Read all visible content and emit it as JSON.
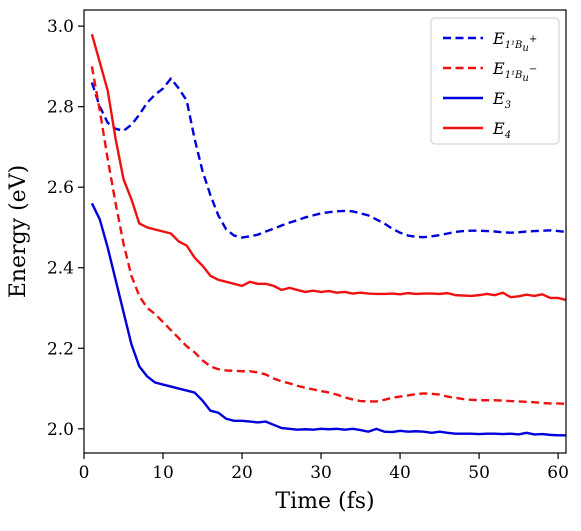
{
  "chart_data": {
    "type": "line",
    "xlabel": "Time (fs)",
    "ylabel": "Energy (eV)",
    "xlim": [
      0,
      61
    ],
    "ylim": [
      1.94,
      3.04
    ],
    "xticks": [
      0,
      10,
      20,
      30,
      40,
      50,
      60
    ],
    "yticks": [
      2.0,
      2.2,
      2.4,
      2.6,
      2.8,
      3.0
    ],
    "xtick_labels": [
      "0",
      "10",
      "20",
      "30",
      "40",
      "50",
      "60"
    ],
    "ytick_labels": [
      "2.0",
      "2.2",
      "2.4",
      "2.6",
      "2.8",
      "3.0"
    ],
    "grid": false,
    "legend_position": "top-right",
    "series": [
      {
        "name": "E_{1^1B_u^+}",
        "legend_main": "E",
        "legend_sub": "1¹B",
        "legend_sub2": "u",
        "legend_sup": "+",
        "color": "#0000dd",
        "dash": "dashed",
        "x": [
          1,
          2,
          3,
          4,
          5,
          6,
          7,
          8,
          9,
          10,
          11,
          12,
          13,
          14,
          15,
          16,
          17,
          18,
          19,
          20,
          21,
          22,
          23,
          24,
          25,
          26,
          27,
          28,
          29,
          30,
          31,
          32,
          33,
          34,
          35,
          36,
          37,
          38,
          39,
          40,
          41,
          42,
          43,
          44,
          45,
          46,
          47,
          48,
          49,
          50,
          51,
          52,
          53,
          54,
          55,
          56,
          57,
          58,
          59,
          60,
          61
        ],
        "y": [
          2.86,
          2.8,
          2.76,
          2.745,
          2.74,
          2.755,
          2.78,
          2.81,
          2.83,
          2.845,
          2.87,
          2.845,
          2.815,
          2.72,
          2.64,
          2.58,
          2.53,
          2.495,
          2.48,
          2.475,
          2.478,
          2.482,
          2.49,
          2.497,
          2.505,
          2.512,
          2.518,
          2.525,
          2.53,
          2.535,
          2.538,
          2.54,
          2.541,
          2.54,
          2.535,
          2.53,
          2.52,
          2.51,
          2.497,
          2.487,
          2.48,
          2.477,
          2.476,
          2.478,
          2.481,
          2.485,
          2.489,
          2.491,
          2.492,
          2.492,
          2.491,
          2.49,
          2.488,
          2.487,
          2.488,
          2.49,
          2.491,
          2.492,
          2.493,
          2.491,
          2.489
        ]
      },
      {
        "name": "E_{1^1B_u^-}",
        "legend_main": "E",
        "legend_sub": "1¹B",
        "legend_sub2": "u",
        "legend_sup": "−",
        "color": "#ee1111",
        "dash": "dashed",
        "x": [
          1,
          2,
          3,
          4,
          5,
          6,
          7,
          8,
          9,
          10,
          11,
          12,
          13,
          14,
          15,
          16,
          17,
          18,
          19,
          20,
          21,
          22,
          23,
          24,
          25,
          26,
          27,
          28,
          29,
          30,
          31,
          32,
          33,
          34,
          35,
          36,
          37,
          38,
          39,
          40,
          41,
          42,
          43,
          44,
          45,
          46,
          47,
          48,
          49,
          50,
          51,
          52,
          53,
          54,
          55,
          56,
          57,
          58,
          59,
          60,
          61
        ],
        "y": [
          2.9,
          2.79,
          2.67,
          2.56,
          2.46,
          2.38,
          2.33,
          2.3,
          2.285,
          2.265,
          2.245,
          2.225,
          2.205,
          2.19,
          2.17,
          2.155,
          2.148,
          2.145,
          2.144,
          2.143,
          2.143,
          2.14,
          2.135,
          2.125,
          2.118,
          2.113,
          2.107,
          2.102,
          2.098,
          2.094,
          2.09,
          2.085,
          2.078,
          2.073,
          2.069,
          2.068,
          2.068,
          2.072,
          2.077,
          2.08,
          2.083,
          2.086,
          2.088,
          2.087,
          2.085,
          2.08,
          2.077,
          2.074,
          2.072,
          2.071,
          2.071,
          2.071,
          2.07,
          2.069,
          2.068,
          2.067,
          2.066,
          2.064,
          2.063,
          2.063,
          2.062
        ]
      },
      {
        "name": "E_3",
        "legend_main": "E",
        "legend_sub": "3",
        "legend_sub2": "",
        "legend_sup": "",
        "color": "#0000dd",
        "dash": "solid",
        "x": [
          1,
          2,
          3,
          4,
          5,
          6,
          7,
          8,
          9,
          10,
          11,
          12,
          13,
          14,
          15,
          16,
          17,
          18,
          19,
          20,
          21,
          22,
          23,
          24,
          25,
          26,
          27,
          28,
          29,
          30,
          31,
          32,
          33,
          34,
          35,
          36,
          37,
          38,
          39,
          40,
          41,
          42,
          43,
          44,
          45,
          46,
          47,
          48,
          49,
          50,
          51,
          52,
          53,
          54,
          55,
          56,
          57,
          58,
          59,
          60,
          61
        ],
        "y": [
          2.56,
          2.52,
          2.45,
          2.37,
          2.29,
          2.21,
          2.155,
          2.13,
          2.115,
          2.11,
          2.105,
          2.1,
          2.095,
          2.09,
          2.07,
          2.045,
          2.04,
          2.025,
          2.02,
          2.02,
          2.018,
          2.016,
          2.018,
          2.01,
          2.002,
          2.0,
          1.998,
          1.999,
          1.998,
          2.0,
          1.999,
          2.0,
          1.998,
          2.0,
          1.997,
          1.993,
          2.0,
          1.993,
          1.992,
          1.995,
          1.993,
          1.994,
          1.993,
          1.99,
          1.993,
          1.99,
          1.988,
          1.988,
          1.988,
          1.987,
          1.988,
          1.988,
          1.987,
          1.988,
          1.986,
          1.99,
          1.986,
          1.987,
          1.985,
          1.984,
          1.984
        ]
      },
      {
        "name": "E_4",
        "legend_main": "E",
        "legend_sub": "4",
        "legend_sub2": "",
        "legend_sup": "",
        "color": "#ee1111",
        "dash": "solid",
        "x": [
          1,
          2,
          3,
          4,
          5,
          6,
          7,
          8,
          9,
          10,
          11,
          12,
          13,
          14,
          15,
          16,
          17,
          18,
          19,
          20,
          21,
          22,
          23,
          24,
          25,
          26,
          27,
          28,
          29,
          30,
          31,
          32,
          33,
          34,
          35,
          36,
          37,
          38,
          39,
          40,
          41,
          42,
          43,
          44,
          45,
          46,
          47,
          48,
          49,
          50,
          51,
          52,
          53,
          54,
          55,
          56,
          57,
          58,
          59,
          60,
          61
        ],
        "y": [
          2.98,
          2.91,
          2.84,
          2.72,
          2.62,
          2.57,
          2.51,
          2.5,
          2.495,
          2.49,
          2.485,
          2.465,
          2.455,
          2.425,
          2.405,
          2.38,
          2.37,
          2.365,
          2.36,
          2.355,
          2.365,
          2.36,
          2.36,
          2.355,
          2.345,
          2.35,
          2.345,
          2.34,
          2.343,
          2.34,
          2.342,
          2.338,
          2.34,
          2.336,
          2.338,
          2.336,
          2.335,
          2.335,
          2.336,
          2.334,
          2.337,
          2.335,
          2.336,
          2.336,
          2.335,
          2.337,
          2.332,
          2.331,
          2.33,
          2.332,
          2.335,
          2.332,
          2.338,
          2.327,
          2.329,
          2.333,
          2.33,
          2.334,
          2.325,
          2.325,
          2.32
        ]
      }
    ]
  }
}
